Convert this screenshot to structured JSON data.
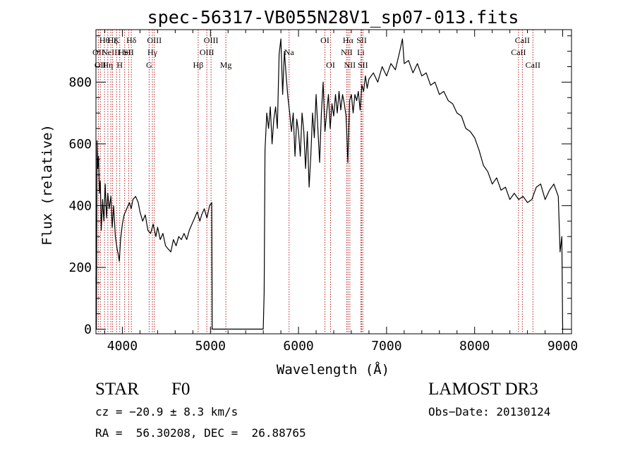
{
  "chart_data": {
    "type": "line",
    "title": "spec-56317-VB055N28V1_sp07-013.fits",
    "xlabel": "Wavelength (Å)",
    "ylabel": "Flux (relative)",
    "xlim": [
      3700,
      9100
    ],
    "ylim": [
      -15,
      970
    ],
    "x_ticks": [
      4000,
      5000,
      6000,
      7000,
      8000,
      9000
    ],
    "y_ticks": [
      0,
      200,
      400,
      600,
      800
    ],
    "grid": false,
    "line_color": "#000000",
    "marker_color": "#b22222",
    "series": [
      {
        "points": [
          [
            3700,
            170
          ],
          [
            3705,
            0
          ],
          [
            3712,
            610
          ],
          [
            3720,
            520
          ],
          [
            3730,
            560
          ],
          [
            3740,
            440
          ],
          [
            3750,
            480
          ],
          [
            3760,
            320
          ],
          [
            3775,
            420
          ],
          [
            3790,
            350
          ],
          [
            3805,
            470
          ],
          [
            3820,
            360
          ],
          [
            3835,
            440
          ],
          [
            3850,
            390
          ],
          [
            3870,
            430
          ],
          [
            3885,
            330
          ],
          [
            3900,
            400
          ],
          [
            3920,
            300
          ],
          [
            3940,
            260
          ],
          [
            3955,
            240
          ],
          [
            3965,
            220
          ],
          [
            3980,
            290
          ],
          [
            4000,
            340
          ],
          [
            4020,
            370
          ],
          [
            4050,
            390
          ],
          [
            4080,
            410
          ],
          [
            4100,
            390
          ],
          [
            4120,
            420
          ],
          [
            4150,
            430
          ],
          [
            4180,
            410
          ],
          [
            4200,
            380
          ],
          [
            4230,
            350
          ],
          [
            4260,
            370
          ],
          [
            4290,
            320
          ],
          [
            4320,
            310
          ],
          [
            4350,
            340
          ],
          [
            4380,
            300
          ],
          [
            4400,
            330
          ],
          [
            4430,
            290
          ],
          [
            4460,
            310
          ],
          [
            4490,
            270
          ],
          [
            4520,
            260
          ],
          [
            4550,
            250
          ],
          [
            4580,
            290
          ],
          [
            4610,
            270
          ],
          [
            4640,
            300
          ],
          [
            4670,
            290
          ],
          [
            4700,
            310
          ],
          [
            4730,
            290
          ],
          [
            4760,
            320
          ],
          [
            4790,
            340
          ],
          [
            4820,
            360
          ],
          [
            4850,
            380
          ],
          [
            4880,
            350
          ],
          [
            4900,
            370
          ],
          [
            4930,
            390
          ],
          [
            4960,
            360
          ],
          [
            4990,
            400
          ],
          [
            5015,
            410
          ],
          [
            5020,
            0
          ],
          [
            5600,
            0
          ],
          [
            5610,
            120
          ],
          [
            5620,
            580
          ],
          [
            5640,
            700
          ],
          [
            5660,
            650
          ],
          [
            5680,
            720
          ],
          [
            5700,
            600
          ],
          [
            5720,
            680
          ],
          [
            5740,
            720
          ],
          [
            5760,
            650
          ],
          [
            5780,
            890
          ],
          [
            5800,
            940
          ],
          [
            5820,
            760
          ],
          [
            5840,
            900
          ],
          [
            5860,
            820
          ],
          [
            5880,
            750
          ],
          [
            5900,
            700
          ],
          [
            5920,
            640
          ],
          [
            5940,
            700
          ],
          [
            5960,
            560
          ],
          [
            5980,
            680
          ],
          [
            6000,
            640
          ],
          [
            6020,
            560
          ],
          [
            6040,
            700
          ],
          [
            6060,
            640
          ],
          [
            6080,
            520
          ],
          [
            6100,
            640
          ],
          [
            6120,
            460
          ],
          [
            6140,
            560
          ],
          [
            6160,
            700
          ],
          [
            6180,
            620
          ],
          [
            6200,
            760
          ],
          [
            6220,
            650
          ],
          [
            6240,
            540
          ],
          [
            6260,
            700
          ],
          [
            6280,
            800
          ],
          [
            6300,
            640
          ],
          [
            6320,
            700
          ],
          [
            6340,
            760
          ],
          [
            6360,
            650
          ],
          [
            6380,
            730
          ],
          [
            6400,
            690
          ],
          [
            6420,
            760
          ],
          [
            6440,
            700
          ],
          [
            6460,
            770
          ],
          [
            6480,
            710
          ],
          [
            6500,
            760
          ],
          [
            6520,
            730
          ],
          [
            6540,
            690
          ],
          [
            6560,
            540
          ],
          [
            6580,
            740
          ],
          [
            6600,
            760
          ],
          [
            6620,
            700
          ],
          [
            6640,
            760
          ],
          [
            6660,
            740
          ],
          [
            6680,
            770
          ],
          [
            6700,
            710
          ],
          [
            6720,
            790
          ],
          [
            6740,
            770
          ],
          [
            6760,
            820
          ],
          [
            6780,
            780
          ],
          [
            6800,
            810
          ],
          [
            6850,
            830
          ],
          [
            6900,
            800
          ],
          [
            6950,
            850
          ],
          [
            7000,
            820
          ],
          [
            7050,
            860
          ],
          [
            7100,
            840
          ],
          [
            7150,
            900
          ],
          [
            7180,
            940
          ],
          [
            7200,
            860
          ],
          [
            7250,
            870
          ],
          [
            7300,
            830
          ],
          [
            7350,
            860
          ],
          [
            7400,
            820
          ],
          [
            7450,
            830
          ],
          [
            7500,
            790
          ],
          [
            7550,
            800
          ],
          [
            7600,
            760
          ],
          [
            7650,
            770
          ],
          [
            7700,
            740
          ],
          [
            7750,
            730
          ],
          [
            7800,
            700
          ],
          [
            7850,
            690
          ],
          [
            7900,
            650
          ],
          [
            7950,
            640
          ],
          [
            8000,
            620
          ],
          [
            8050,
            580
          ],
          [
            8100,
            530
          ],
          [
            8150,
            510
          ],
          [
            8200,
            470
          ],
          [
            8250,
            490
          ],
          [
            8300,
            450
          ],
          [
            8350,
            460
          ],
          [
            8400,
            420
          ],
          [
            8450,
            440
          ],
          [
            8500,
            420
          ],
          [
            8550,
            430
          ],
          [
            8600,
            410
          ],
          [
            8650,
            420
          ],
          [
            8700,
            460
          ],
          [
            8750,
            470
          ],
          [
            8800,
            420
          ],
          [
            8850,
            450
          ],
          [
            8900,
            470
          ],
          [
            8950,
            430
          ],
          [
            8970,
            250
          ],
          [
            8990,
            300
          ],
          [
            9000,
            0
          ]
        ]
      }
    ],
    "line_markers": [
      {
        "wavelength": 3727,
        "labels": [
          "OII"
        ],
        "row": 1
      },
      {
        "wavelength": 3750,
        "labels": [
          "OII"
        ],
        "row": 2
      },
      {
        "wavelength": 3797,
        "labels": [
          "Hθ"
        ],
        "row": 0
      },
      {
        "wavelength": 3835,
        "labels": [
          "Hη"
        ],
        "row": 2
      },
      {
        "wavelength": 3869,
        "labels": [
          "NeIII"
        ],
        "row": 1
      },
      {
        "wavelength": 3889,
        "labels": [
          "Hζ"
        ],
        "row": 0
      },
      {
        "wavelength": 3934,
        "labels": [
          "K"
        ],
        "row": 0
      },
      {
        "wavelength": 3970,
        "labels": [
          "H"
        ],
        "row": 2
      },
      {
        "wavelength": 4026,
        "labels": [
          "HeI"
        ],
        "row": 1
      },
      {
        "wavelength": 4072,
        "labels": [
          "SII"
        ],
        "row": 1
      },
      {
        "wavelength": 4102,
        "labels": [
          "Hδ"
        ],
        "row": 0
      },
      {
        "wavelength": 4304,
        "labels": [
          "G"
        ],
        "row": 2
      },
      {
        "wavelength": 4341,
        "labels": [
          "Hγ"
        ],
        "row": 1
      },
      {
        "wavelength": 4363,
        "labels": [
          "OIII"
        ],
        "row": 0
      },
      {
        "wavelength": 4861,
        "labels": [
          "Hβ"
        ],
        "row": 2
      },
      {
        "wavelength": 4959,
        "labels": [
          "OIII"
        ],
        "row": 1
      },
      {
        "wavelength": 5007,
        "labels": [
          "OIII"
        ],
        "row": 0
      },
      {
        "wavelength": 5175,
        "labels": [
          "Mg"
        ],
        "row": 2
      },
      {
        "wavelength": 5893,
        "labels": [
          "Na"
        ],
        "row": 1
      },
      {
        "wavelength": 6300,
        "labels": [
          "OI"
        ],
        "row": 0
      },
      {
        "wavelength": 6364,
        "labels": [
          "OI"
        ],
        "row": 2
      },
      {
        "wavelength": 6548,
        "labels": [
          "NII"
        ],
        "row": 1
      },
      {
        "wavelength": 6563,
        "labels": [
          "Hα"
        ],
        "row": 0
      },
      {
        "wavelength": 6583,
        "labels": [
          "NII"
        ],
        "row": 2
      },
      {
        "wavelength": 6708,
        "labels": [
          "Li"
        ],
        "row": 1
      },
      {
        "wavelength": 6717,
        "labels": [
          "SII"
        ],
        "row": 0
      },
      {
        "wavelength": 6731,
        "labels": [
          "SII"
        ],
        "row": 2
      },
      {
        "wavelength": 8498,
        "labels": [
          "CaII"
        ],
        "row": 1
      },
      {
        "wavelength": 8542,
        "labels": [
          "CaII"
        ],
        "row": 0
      },
      {
        "wavelength": 8662,
        "labels": [
          "CaII"
        ],
        "row": 2
      }
    ]
  },
  "info": {
    "object_class": "STAR",
    "subclass": "F0",
    "cz": "cz = −20.9 ± 8.3 km/s",
    "coords": "RA =  56.30208, DEC =  26.88765",
    "survey": "LAMOST DR3",
    "obs_date": "Obs−Date: 20130124"
  }
}
